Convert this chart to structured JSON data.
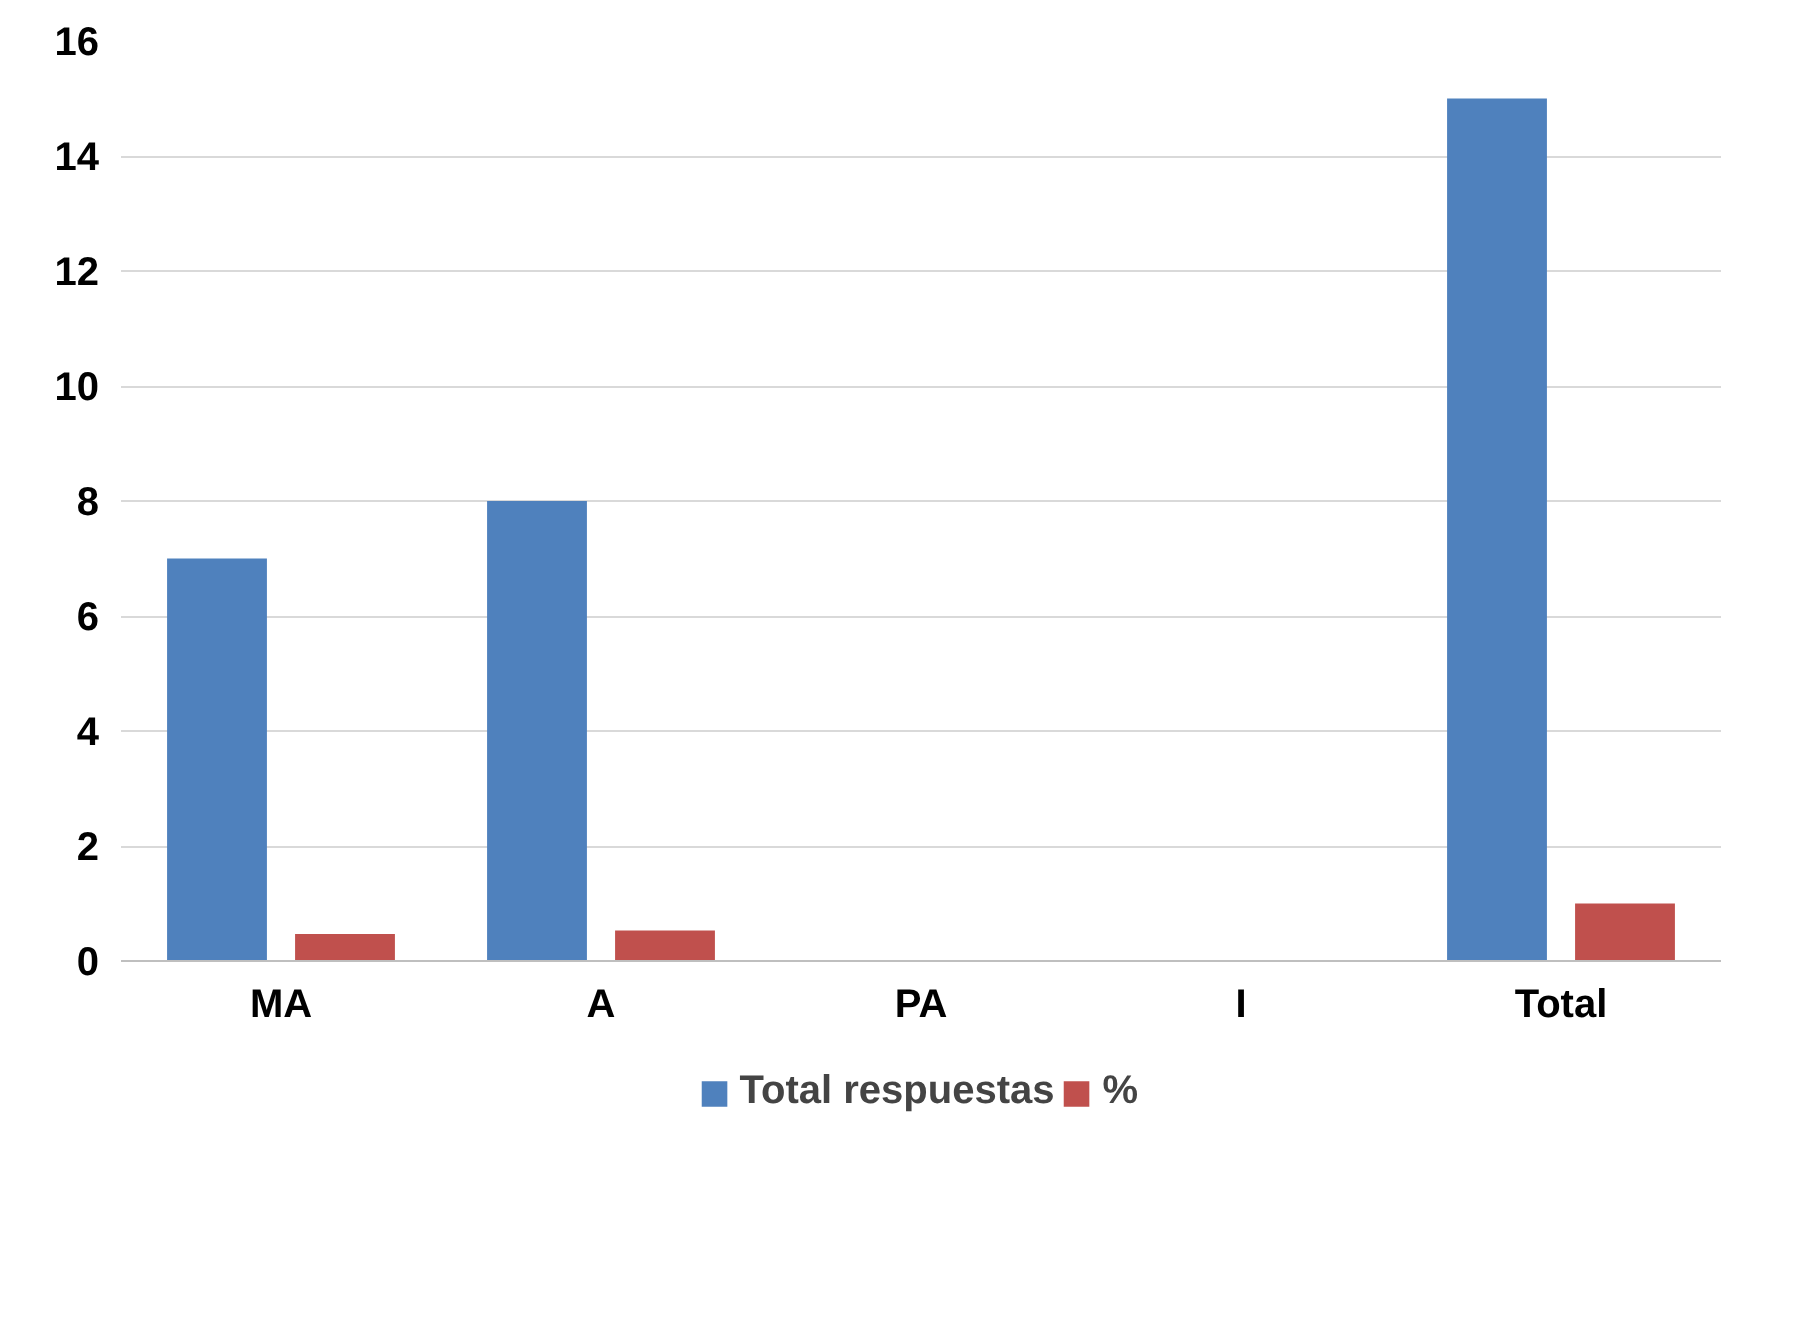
{
  "chart_data": {
    "type": "bar",
    "categories": [
      "MA",
      "A",
      "PA",
      "I",
      "Total"
    ],
    "series": [
      {
        "name": "Total respuestas",
        "color": "#4f81bd",
        "values": [
          7,
          8,
          0,
          0,
          15
        ]
      },
      {
        "name": "%",
        "color": "#c0504d",
        "values": [
          0.47,
          0.53,
          0,
          0,
          1
        ]
      }
    ],
    "ylim": [
      0,
      16
    ],
    "yticks": [
      0,
      2,
      4,
      6,
      8,
      10,
      12,
      14,
      16
    ],
    "grid": "y",
    "legend": "bottom"
  }
}
